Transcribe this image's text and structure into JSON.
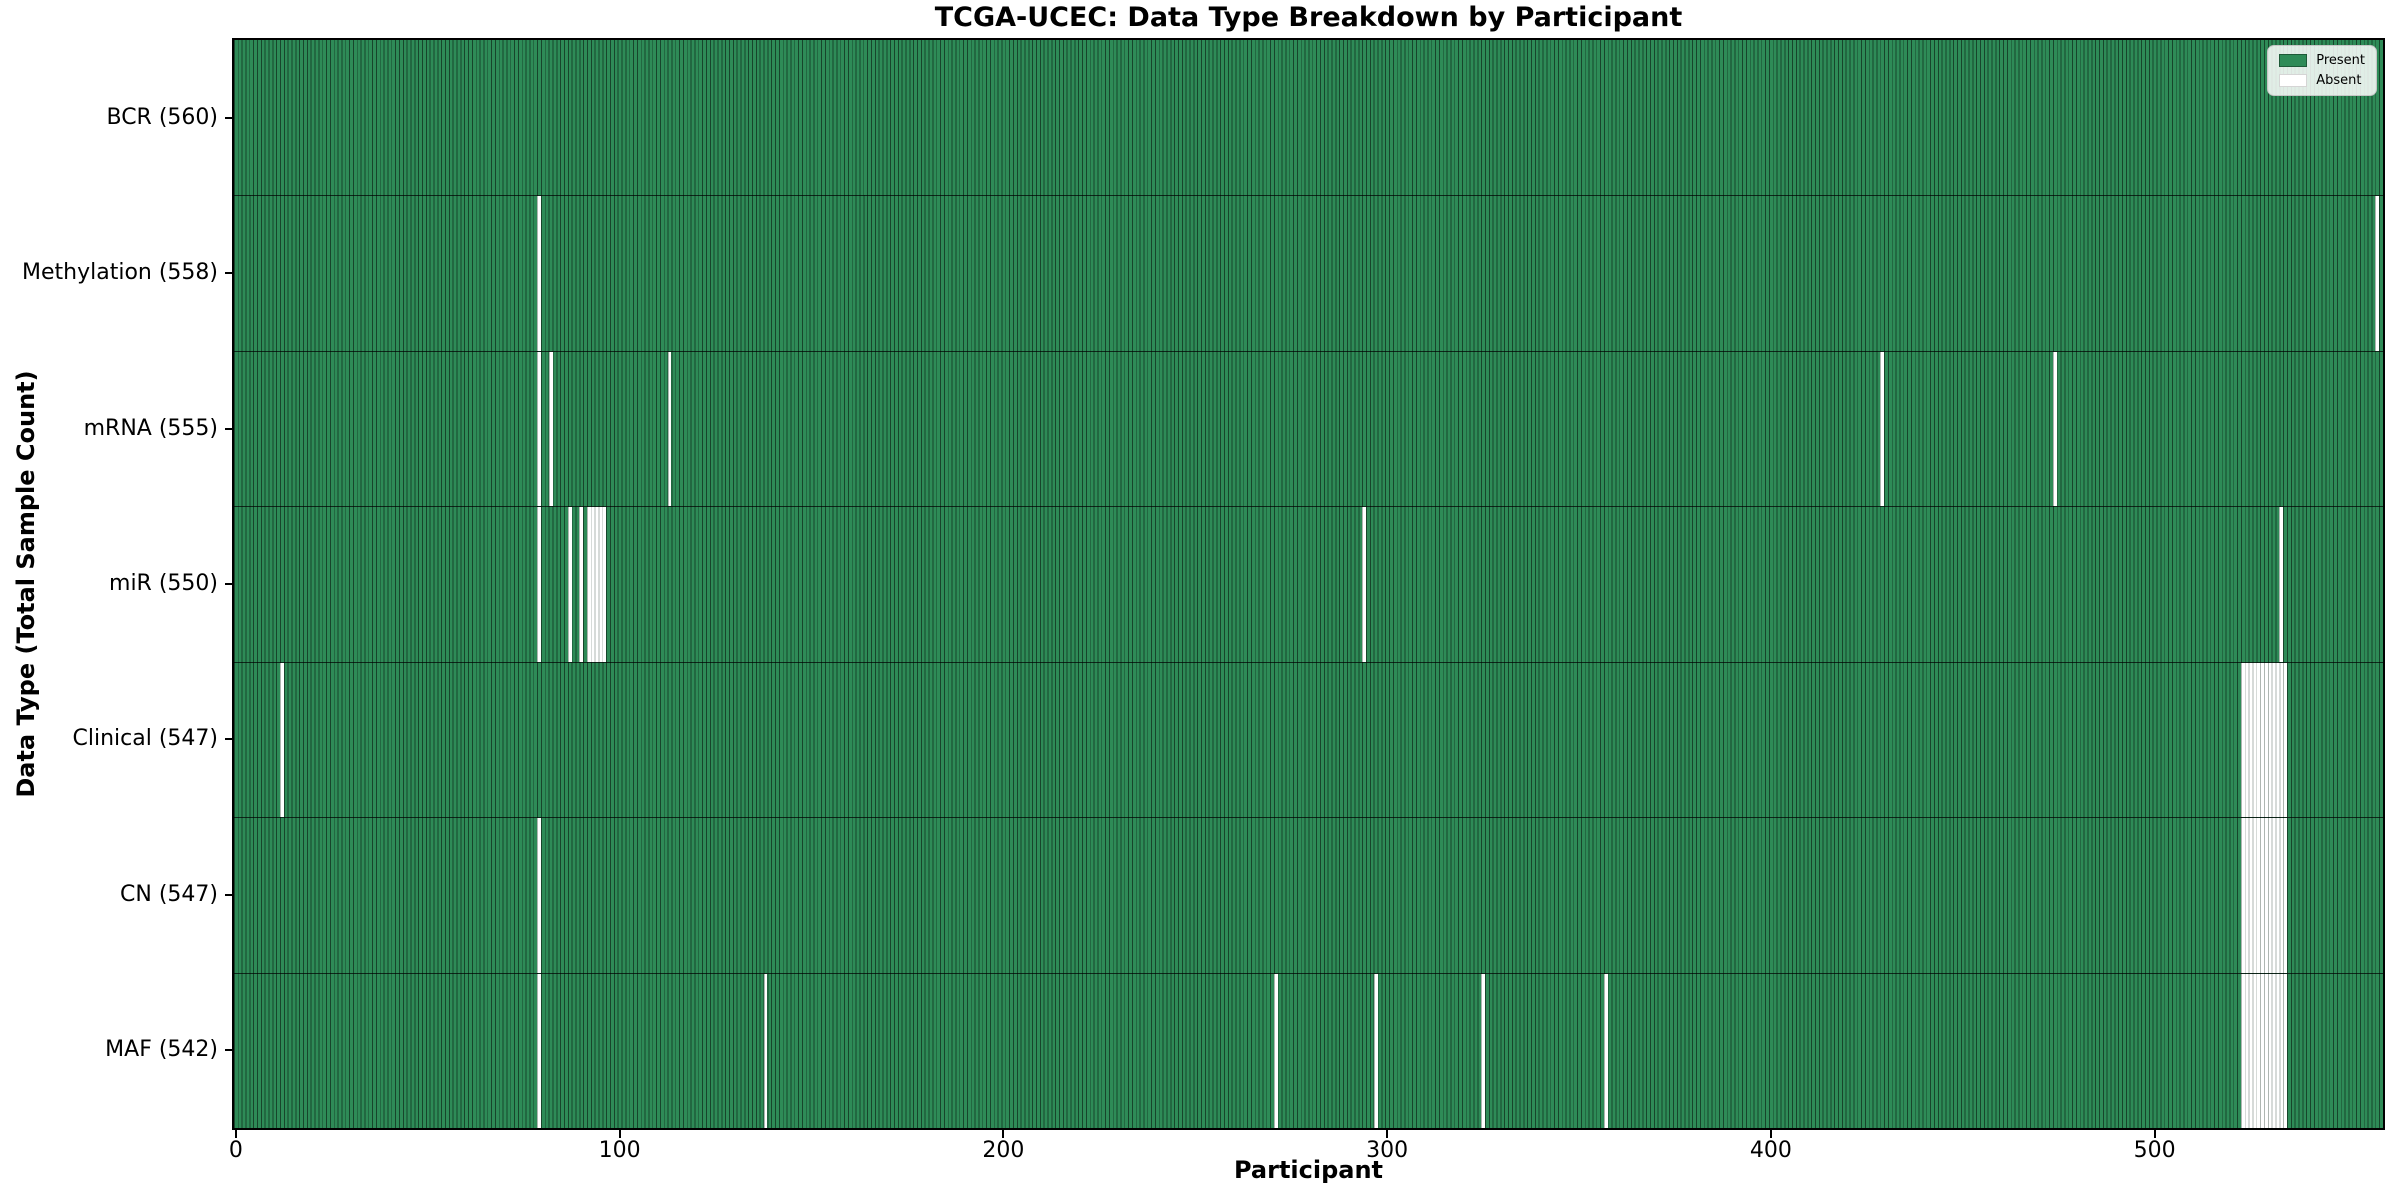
{
  "title": "TCGA-UCEC: Data Type Breakdown by Participant",
  "chart_data": {
    "type": "heatmap",
    "title": "TCGA-UCEC: Data Type Breakdown by Participant",
    "xlabel": "Participant",
    "ylabel": "Data Type (Total Sample Count)",
    "x_ticks": [
      0,
      100,
      200,
      300,
      400,
      500
    ],
    "n_participants": 560,
    "grid": false,
    "legend_position": "upper right",
    "colors": {
      "present": "#2e8b57",
      "absent": "#ffffff",
      "bar_edge": "rgba(0,0,0,0.5)",
      "absent_edge": "#aeb6b1"
    },
    "legend": [
      {
        "label": "Present",
        "color": "#2e8b57"
      },
      {
        "label": "Absent",
        "color": "#ffffff"
      }
    ],
    "rows": [
      {
        "data_type": "BCR",
        "label": "BCR (560)",
        "present_count": 560,
        "absent_participants": []
      },
      {
        "data_type": "Methylation",
        "label": "Methylation (558)",
        "present_count": 558,
        "absent_participants": [
          79,
          558
        ]
      },
      {
        "data_type": "mRNA",
        "label": "mRNA (555)",
        "present_count": 555,
        "absent_participants": [
          79,
          82,
          113,
          429,
          474
        ]
      },
      {
        "data_type": "miR",
        "label": "miR (550)",
        "present_count": 550,
        "absent_participants": [
          79,
          87,
          90,
          92,
          93,
          94,
          95,
          96,
          294,
          533
        ]
      },
      {
        "data_type": "Clinical",
        "label": "Clinical (547)",
        "present_count": 547,
        "absent_participants": [
          12,
          523,
          524,
          525,
          526,
          527,
          528,
          529,
          530,
          531,
          532,
          533,
          534
        ]
      },
      {
        "data_type": "CN",
        "label": "CN (547)",
        "present_count": 547,
        "absent_participants": [
          79,
          523,
          524,
          525,
          526,
          527,
          528,
          529,
          530,
          531,
          532,
          533,
          534
        ]
      },
      {
        "data_type": "MAF",
        "label": "MAF (542)",
        "present_count": 542,
        "absent_participants": [
          79,
          138,
          271,
          297,
          325,
          357,
          523,
          524,
          525,
          526,
          527,
          528,
          529,
          530,
          531,
          532,
          533,
          534
        ]
      }
    ]
  }
}
